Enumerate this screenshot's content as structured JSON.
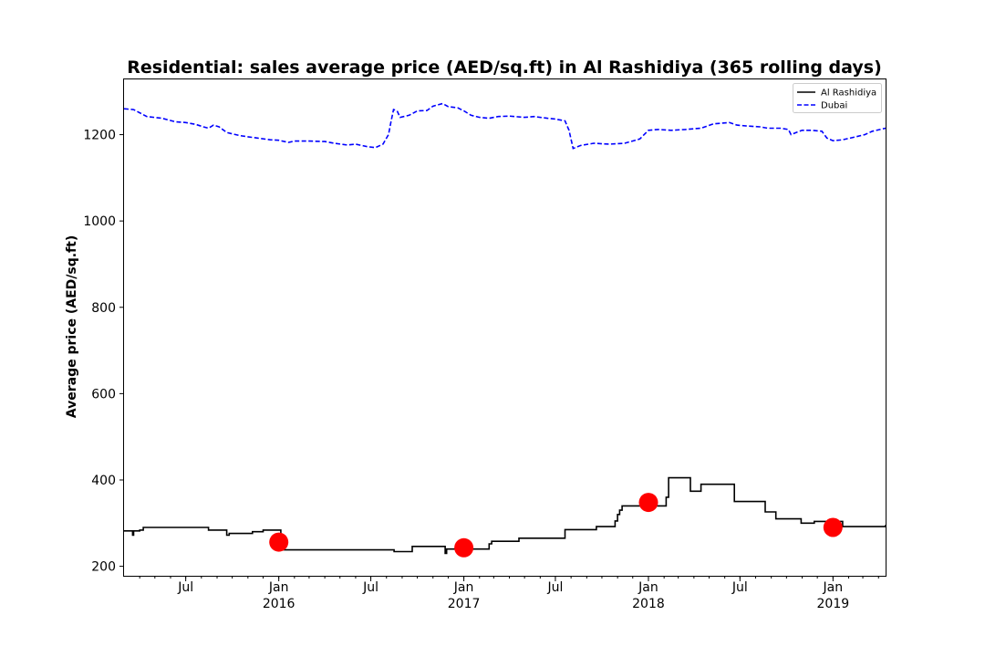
{
  "chart_data": {
    "type": "line",
    "title": "Residential: sales average price (AED/sq.ft) in Al Rashidiya (365 rolling days)",
    "xlabel": "",
    "ylabel": "Average price (AED/sq.ft)",
    "ylim": [
      178,
      1328
    ],
    "xlim": [
      "2015-03-01",
      "2019-04-15"
    ],
    "y_ticks": [
      200,
      400,
      600,
      800,
      1000,
      1200
    ],
    "x_ticks": [
      {
        "date": "2015-07-01",
        "label": "Jul",
        "sublabel": ""
      },
      {
        "date": "2016-01-01",
        "label": "Jan",
        "sublabel": "2016"
      },
      {
        "date": "2016-07-01",
        "label": "Jul",
        "sublabel": ""
      },
      {
        "date": "2017-01-01",
        "label": "Jan",
        "sublabel": "2017"
      },
      {
        "date": "2017-07-01",
        "label": "Jul",
        "sublabel": ""
      },
      {
        "date": "2018-01-01",
        "label": "Jan",
        "sublabel": "2018"
      },
      {
        "date": "2018-07-01",
        "label": "Jul",
        "sublabel": ""
      },
      {
        "date": "2019-01-01",
        "label": "Jan",
        "sublabel": "2019"
      }
    ],
    "legend": {
      "position": "top-right",
      "entries": [
        "Al Rashidiya",
        "Dubai"
      ]
    },
    "grid": false,
    "series": [
      {
        "name": "Al Rashidiya",
        "color": "#000000",
        "style": "solid",
        "step": true,
        "points": [
          [
            "2015-03-01",
            282
          ],
          [
            "2015-03-15",
            282
          ],
          [
            "2015-03-18",
            272
          ],
          [
            "2015-03-20",
            282
          ],
          [
            "2015-04-01",
            284
          ],
          [
            "2015-04-08",
            290
          ],
          [
            "2015-06-15",
            290
          ],
          [
            "2015-07-15",
            290
          ],
          [
            "2015-08-15",
            284
          ],
          [
            "2015-09-20",
            272
          ],
          [
            "2015-09-25",
            276
          ],
          [
            "2015-11-10",
            280
          ],
          [
            "2015-12-01",
            284
          ],
          [
            "2015-12-25",
            284
          ],
          [
            "2016-01-05",
            238
          ],
          [
            "2016-08-15",
            238
          ],
          [
            "2016-08-16",
            234
          ],
          [
            "2016-09-20",
            234
          ],
          [
            "2016-09-21",
            246
          ],
          [
            "2016-11-20",
            246
          ],
          [
            "2016-11-25",
            230
          ],
          [
            "2016-11-28",
            240
          ],
          [
            "2017-02-15",
            240
          ],
          [
            "2017-02-20",
            252
          ],
          [
            "2017-02-25",
            258
          ],
          [
            "2017-04-15",
            258
          ],
          [
            "2017-04-20",
            265
          ],
          [
            "2017-07-15",
            265
          ],
          [
            "2017-07-20",
            285
          ],
          [
            "2017-09-15",
            285
          ],
          [
            "2017-09-20",
            292
          ],
          [
            "2017-10-25",
            292
          ],
          [
            "2017-10-27",
            305
          ],
          [
            "2017-11-01",
            320
          ],
          [
            "2017-11-05",
            330
          ],
          [
            "2017-11-10",
            340
          ],
          [
            "2018-02-01",
            340
          ],
          [
            "2018-02-05",
            360
          ],
          [
            "2018-02-10",
            405
          ],
          [
            "2018-03-20",
            405
          ],
          [
            "2018-03-25",
            374
          ],
          [
            "2018-04-10",
            374
          ],
          [
            "2018-04-15",
            390
          ],
          [
            "2018-06-15",
            390
          ],
          [
            "2018-06-20",
            350
          ],
          [
            "2018-08-15",
            350
          ],
          [
            "2018-08-20",
            326
          ],
          [
            "2018-09-05",
            326
          ],
          [
            "2018-09-10",
            310
          ],
          [
            "2018-10-25",
            310
          ],
          [
            "2018-10-30",
            300
          ],
          [
            "2018-11-20",
            300
          ],
          [
            "2018-11-25",
            304
          ],
          [
            "2019-01-15",
            304
          ],
          [
            "2019-01-20",
            292
          ],
          [
            "2019-04-12",
            292
          ],
          [
            "2019-04-15",
            296
          ]
        ]
      },
      {
        "name": "Dubai",
        "color": "#0000ff",
        "style": "dashed",
        "step": false,
        "points": [
          [
            "2015-03-01",
            1260
          ],
          [
            "2015-03-20",
            1258
          ],
          [
            "2015-04-15",
            1242
          ],
          [
            "2015-05-15",
            1238
          ],
          [
            "2015-06-10",
            1230
          ],
          [
            "2015-07-01",
            1228
          ],
          [
            "2015-07-20",
            1224
          ],
          [
            "2015-08-05",
            1218
          ],
          [
            "2015-08-15",
            1215
          ],
          [
            "2015-08-25",
            1222
          ],
          [
            "2015-09-05",
            1218
          ],
          [
            "2015-09-20",
            1205
          ],
          [
            "2015-10-15",
            1198
          ],
          [
            "2015-11-01",
            1195
          ],
          [
            "2015-11-20",
            1192
          ],
          [
            "2015-12-15",
            1188
          ],
          [
            "2016-01-01",
            1187
          ],
          [
            "2016-01-20",
            1182
          ],
          [
            "2016-02-01",
            1185
          ],
          [
            "2016-03-01",
            1185
          ],
          [
            "2016-04-01",
            1184
          ],
          [
            "2016-04-20",
            1180
          ],
          [
            "2016-05-15",
            1176
          ],
          [
            "2016-06-01",
            1178
          ],
          [
            "2016-06-25",
            1172
          ],
          [
            "2016-07-10",
            1170
          ],
          [
            "2016-07-25",
            1178
          ],
          [
            "2016-08-05",
            1200
          ],
          [
            "2016-08-10",
            1230
          ],
          [
            "2016-08-15",
            1258
          ],
          [
            "2016-08-22",
            1255
          ],
          [
            "2016-08-28",
            1240
          ],
          [
            "2016-09-15",
            1245
          ],
          [
            "2016-10-01",
            1255
          ],
          [
            "2016-10-20",
            1256
          ],
          [
            "2016-11-01",
            1266
          ],
          [
            "2016-11-20",
            1272
          ],
          [
            "2016-12-01",
            1265
          ],
          [
            "2016-12-20",
            1262
          ],
          [
            "2017-01-01",
            1255
          ],
          [
            "2017-01-15",
            1245
          ],
          [
            "2017-02-01",
            1240
          ],
          [
            "2017-02-20",
            1238
          ],
          [
            "2017-03-10",
            1242
          ],
          [
            "2017-04-01",
            1243
          ],
          [
            "2017-05-01",
            1240
          ],
          [
            "2017-05-20",
            1242
          ],
          [
            "2017-06-15",
            1238
          ],
          [
            "2017-07-01",
            1236
          ],
          [
            "2017-07-20",
            1232
          ],
          [
            "2017-07-28",
            1210
          ],
          [
            "2017-08-05",
            1168
          ],
          [
            "2017-08-20",
            1175
          ],
          [
            "2017-09-15",
            1180
          ],
          [
            "2017-10-15",
            1178
          ],
          [
            "2017-11-15",
            1180
          ],
          [
            "2017-12-15",
            1190
          ],
          [
            "2018-01-01",
            1210
          ],
          [
            "2018-01-20",
            1212
          ],
          [
            "2018-02-15",
            1210
          ],
          [
            "2018-03-15",
            1212
          ],
          [
            "2018-04-15",
            1215
          ],
          [
            "2018-05-10",
            1225
          ],
          [
            "2018-06-10",
            1228
          ],
          [
            "2018-06-25",
            1222
          ],
          [
            "2018-07-15",
            1220
          ],
          [
            "2018-08-10",
            1218
          ],
          [
            "2018-08-25",
            1215
          ],
          [
            "2018-09-20",
            1215
          ],
          [
            "2018-10-05",
            1212
          ],
          [
            "2018-10-10",
            1200
          ],
          [
            "2018-10-20",
            1205
          ],
          [
            "2018-11-01",
            1210
          ],
          [
            "2018-11-20",
            1210
          ],
          [
            "2018-12-10",
            1208
          ],
          [
            "2018-12-20",
            1192
          ],
          [
            "2019-01-01",
            1186
          ],
          [
            "2019-01-20",
            1188
          ],
          [
            "2019-02-15",
            1195
          ],
          [
            "2019-03-05",
            1200
          ],
          [
            "2019-03-20",
            1208
          ],
          [
            "2019-04-15",
            1215
          ]
        ]
      }
    ],
    "markers": {
      "color": "#ff0000",
      "points": [
        [
          "2016-01-01",
          256
        ],
        [
          "2017-01-01",
          243
        ],
        [
          "2018-01-01",
          348
        ],
        [
          "2019-01-01",
          290
        ]
      ]
    }
  }
}
